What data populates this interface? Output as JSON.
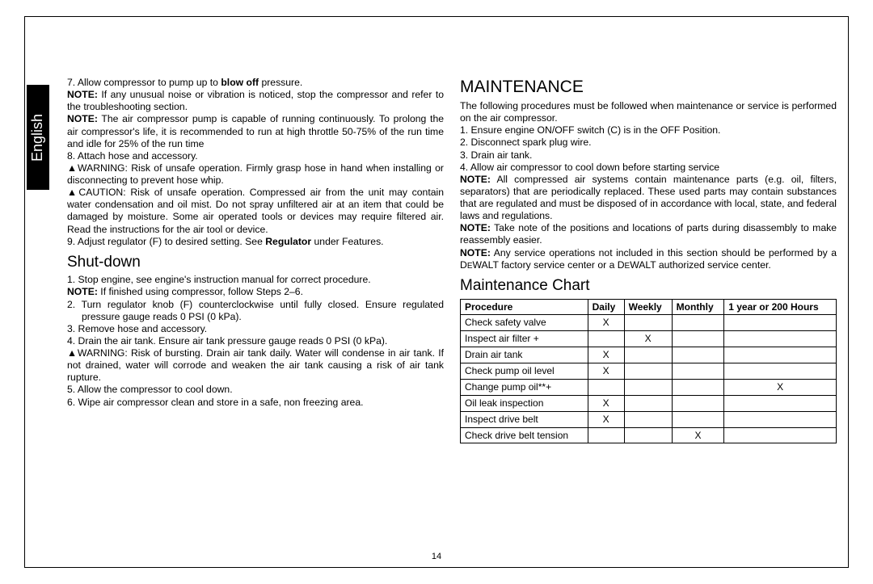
{
  "langTab": "English",
  "pageNumber": "14",
  "left": {
    "item7": "7. Allow compressor to pump up to ",
    "item7_bold": "blow off",
    "item7_end": " pressure.",
    "note1_label": "NOTE:",
    "note1": " If any unusual noise or vibration is noticed, stop the compressor and refer to the troubleshooting section.",
    "note2_label": "NOTE:",
    "note2": " The air compressor pump is capable of running continuously. To prolong the air compressor's life, it is recommended to run at high throttle 50-75% of the run time and idle for 25% of the run time",
    "item8": "8. Attach hose and accessory.",
    "warn1": "WARNING: Risk of unsafe operation. Firmly grasp hose in hand when installing or disconnecting to prevent hose whip.",
    "caut1": "CAUTION: Risk of unsafe operation. Compressed air from the unit may contain water condensation and oil mist. Do not spray unfiltered air at an item that could be damaged by moisture. Some air operated tools or devices may require filtered air. Read the instructions for the air tool or device.",
    "item9a": "9. Adjust regulator (F) to desired setting. See ",
    "item9_bold": "Regulator",
    "item9b": " under Features.",
    "shutdown_h": "Shut-down",
    "sd1": "1. Stop engine, see engine's instruction manual for correct procedure.",
    "sd_note_label": "NOTE:",
    "sd_note": " If finished using compressor, follow Steps 2–6.",
    "sd2": "2. Turn regulator knob (F) counterclockwise until fully closed. Ensure regulated pressure gauge reads 0 PSI (0 kPa).",
    "sd3": "3. Remove hose and accessory.",
    "sd4": "4. Drain the air tank. Ensure air tank pressure gauge reads 0 PSI (0 kPa).",
    "warn2": "WARNING: Risk of bursting. Drain air tank daily. Water will condense in air tank. If not drained, water will corrode and weaken the air tank causing a risk of air tank rupture.",
    "sd5": "5. Allow the compressor to cool down.",
    "sd6": "6. Wipe air compressor clean and store in a safe, non freezing area."
  },
  "right": {
    "maint_h": "MAINTENANCE",
    "maint_intro": "The following procedures must be followed when maintenance or service is performed on the air compressor.",
    "m1": "1. Ensure engine ON/OFF switch (C) is in the OFF Position.",
    "m2": "2. Disconnect spark plug wire.",
    "m3": "3. Drain air tank.",
    "m4": "4. Allow air compressor to cool down before starting service",
    "mnote1_label": "NOTE:",
    "mnote1": " All compressed air systems contain maintenance parts (e.g. oil, filters, separators) that are periodically replaced. These used parts may contain substances that are regulated and must be disposed of in accordance with local, state, and federal laws and regulations.",
    "mnote2_label": "NOTE:",
    "mnote2": " Take note of the positions and locations of parts during disassembly to make reassembly easier.",
    "mnote3_label": "NOTE:",
    "mnote3a": " Any service operations not included in this section should be performed by a D",
    "mnote3b": "WALT factory service center or a D",
    "mnote3c": "WALT authorized service center.",
    "mc_h": "Maintenance Chart",
    "th_proc": "Procedure",
    "th_daily": "Daily",
    "th_weekly": "Weekly",
    "th_monthly": "Monthly",
    "th_year": "1 year or 200 Hours",
    "rows": [
      {
        "p": "Check safety valve",
        "d": "X",
        "w": "",
        "m": "",
        "y": ""
      },
      {
        "p": "Inspect air filter +",
        "d": "",
        "w": "X",
        "m": "",
        "y": ""
      },
      {
        "p": "Drain air tank",
        "d": "X",
        "w": "",
        "m": "",
        "y": ""
      },
      {
        "p": "Check pump oil level",
        "d": "X",
        "w": "",
        "m": "",
        "y": ""
      },
      {
        "p": "Change pump oil**+",
        "d": "",
        "w": "",
        "m": "",
        "y": "X"
      },
      {
        "p": "Oil leak inspection",
        "d": "X",
        "w": "",
        "m": "",
        "y": ""
      },
      {
        "p": "Inspect drive belt",
        "d": "X",
        "w": "",
        "m": "",
        "y": ""
      },
      {
        "p": "Check drive belt tension",
        "d": "",
        "w": "",
        "m": "X",
        "y": ""
      }
    ]
  }
}
